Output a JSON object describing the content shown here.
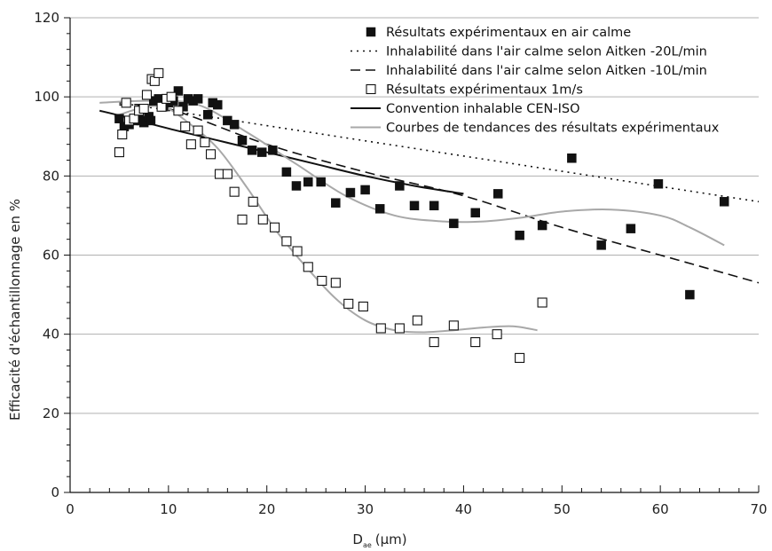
{
  "chart_data": {
    "type": "scatter",
    "xlabel": "D",
    "xlabel_sub": "ae",
    "xlabel_unit": "(μm)",
    "ylabel": "Efficacité d'échantillonnage en %",
    "xlim": [
      0,
      70
    ],
    "ylim": [
      0,
      120
    ],
    "x_ticks": [
      0,
      10,
      20,
      30,
      40,
      50,
      60,
      70
    ],
    "y_ticks": [
      0,
      20,
      40,
      60,
      80,
      100,
      120
    ],
    "grid": "horizontal",
    "legend_position": "top-right",
    "colors": {
      "marker": "#111111",
      "trend": "#a8a8a8",
      "grid": "#b0b0b0",
      "axis": "#111111"
    },
    "series": [
      {
        "name": "Résultats expérimentaux en air calme",
        "style": "filled-square",
        "points": [
          [
            5,
            94.5
          ],
          [
            5.5,
            92.5
          ],
          [
            6,
            93
          ],
          [
            6.5,
            94
          ],
          [
            7,
            95.5
          ],
          [
            7.2,
            94
          ],
          [
            7.5,
            93.5
          ],
          [
            8,
            95
          ],
          [
            8.2,
            94
          ],
          [
            8.5,
            99
          ],
          [
            9,
            99.5
          ],
          [
            9.5,
            97.5
          ],
          [
            10,
            98.5
          ],
          [
            10.5,
            99
          ],
          [
            11,
            101.5
          ],
          [
            11.5,
            97.5
          ],
          [
            12,
            99.5
          ],
          [
            12.5,
            99
          ],
          [
            13,
            99.5
          ],
          [
            14,
            95.5
          ],
          [
            14.5,
            98.5
          ],
          [
            15,
            98
          ],
          [
            16,
            94
          ],
          [
            16.7,
            93
          ],
          [
            17.5,
            89
          ],
          [
            18.5,
            86.5
          ],
          [
            19.5,
            86
          ],
          [
            20.6,
            86.5
          ],
          [
            22,
            81
          ],
          [
            23,
            77.5
          ],
          [
            24.2,
            78.5
          ],
          [
            25.5,
            78.5
          ],
          [
            27,
            73.2
          ],
          [
            28.5,
            75.8
          ],
          [
            30,
            76.5
          ],
          [
            31.5,
            71.7
          ],
          [
            33.5,
            77.5
          ],
          [
            35,
            72.5
          ],
          [
            37,
            72.5
          ],
          [
            39,
            68
          ],
          [
            41.2,
            70.7
          ],
          [
            43.5,
            75.5
          ],
          [
            45.7,
            65
          ],
          [
            48,
            67.5
          ],
          [
            51,
            84.5
          ],
          [
            54,
            62.5
          ],
          [
            57,
            66.7
          ],
          [
            59.8,
            78
          ],
          [
            63,
            50
          ],
          [
            66.5,
            73.5
          ]
        ]
      },
      {
        "name": "Inhalabilité dans l'air calme selon Aitken -20L/min",
        "style": "dotted-line",
        "points": [
          [
            5,
            98.5
          ],
          [
            70,
            73.5
          ]
        ]
      },
      {
        "name": "Inhalabilité dans l'air calme selon Aitken -10L/min",
        "style": "dashed-line",
        "points": [
          [
            5,
            98
          ],
          [
            10,
            97
          ],
          [
            20,
            88
          ],
          [
            30,
            81
          ],
          [
            40,
            75
          ],
          [
            50,
            67
          ],
          [
            60,
            60
          ],
          [
            70,
            53
          ]
        ]
      },
      {
        "name": "Résultats expérimentaux 1m/s",
        "style": "open-square",
        "points": [
          [
            5,
            86
          ],
          [
            5.3,
            90.5
          ],
          [
            5.7,
            98.5
          ],
          [
            6,
            94
          ],
          [
            6.5,
            94.5
          ],
          [
            7,
            96.5
          ],
          [
            7.5,
            97
          ],
          [
            7.8,
            100.5
          ],
          [
            8.3,
            104.5
          ],
          [
            8.6,
            104
          ],
          [
            9,
            106
          ],
          [
            9.3,
            97.5
          ],
          [
            9.8,
            99.5
          ],
          [
            10.3,
            100
          ],
          [
            11,
            96.5
          ],
          [
            11.7,
            92.5
          ],
          [
            12.3,
            88
          ],
          [
            13,
            91.5
          ],
          [
            13.7,
            88.5
          ],
          [
            14.3,
            85.5
          ],
          [
            15.2,
            80.5
          ],
          [
            16,
            80.5
          ],
          [
            16.7,
            76
          ],
          [
            17.5,
            69
          ],
          [
            18.6,
            73.5
          ],
          [
            19.6,
            69
          ],
          [
            20.8,
            67
          ],
          [
            22,
            63.5
          ],
          [
            23.1,
            61
          ],
          [
            24.2,
            57
          ],
          [
            25.6,
            53.5
          ],
          [
            27,
            53
          ],
          [
            28.3,
            47.7
          ],
          [
            29.8,
            47
          ],
          [
            31.6,
            41.5
          ],
          [
            33.5,
            41.5
          ],
          [
            35.3,
            43.5
          ],
          [
            37,
            38
          ],
          [
            39,
            42.2
          ],
          [
            41.2,
            38
          ],
          [
            43.4,
            40
          ],
          [
            45.7,
            34
          ],
          [
            48,
            48
          ]
        ]
      },
      {
        "name": "Convention inhalable CEN-ISO",
        "style": "solid-line",
        "points": [
          [
            3,
            96.5
          ],
          [
            5,
            95.3
          ],
          [
            10,
            92
          ],
          [
            15,
            89
          ],
          [
            20,
            86
          ],
          [
            25,
            83
          ],
          [
            30,
            80
          ],
          [
            35,
            77.5
          ],
          [
            40,
            75.5
          ]
        ]
      },
      {
        "name": "Courbes de tendances des résultats expérimentaux",
        "style": "gray-line",
        "curves": [
          [
            [
              3,
              98.5
            ],
            [
              8,
              99
            ],
            [
              13,
              98
            ],
            [
              18,
              91
            ],
            [
              23,
              83
            ],
            [
              28,
              75
            ],
            [
              33,
              70
            ],
            [
              38,
              68.5
            ],
            [
              42,
              68.5
            ],
            [
              46,
              69.5
            ],
            [
              50,
              71
            ],
            [
              55,
              71.5
            ],
            [
              60,
              70
            ],
            [
              63,
              67
            ],
            [
              66.5,
              62.5
            ]
          ],
          [
            [
              4.5,
              95
            ],
            [
              7,
              97
            ],
            [
              9.5,
              97.5
            ],
            [
              12,
              93.5
            ],
            [
              15,
              87
            ],
            [
              18,
              77
            ],
            [
              21,
              66
            ],
            [
              24,
              57
            ],
            [
              27,
              49
            ],
            [
              30,
              43.5
            ],
            [
              33,
              41
            ],
            [
              36,
              40.5
            ],
            [
              39,
              41
            ],
            [
              42,
              41.7
            ],
            [
              45,
              42
            ],
            [
              47.5,
              41
            ]
          ]
        ]
      }
    ]
  }
}
